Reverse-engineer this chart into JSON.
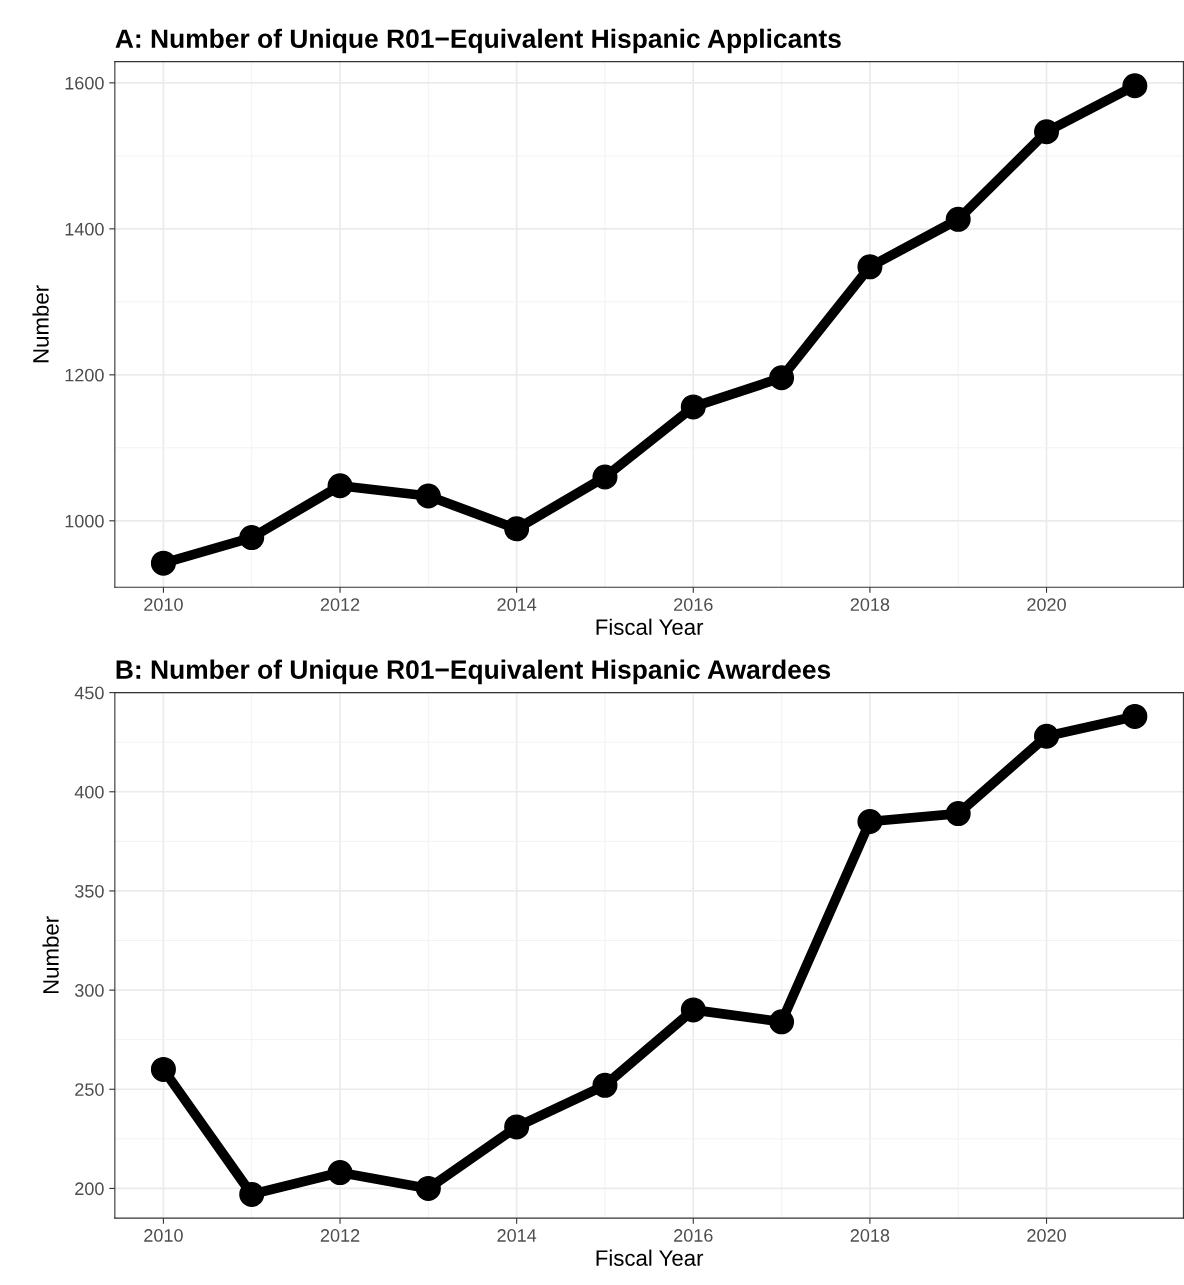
{
  "chart_data": [
    {
      "type": "line",
      "title": "A: Number of Unique R01−Equivalent Hispanic Applicants",
      "xlabel": "Fiscal Year",
      "ylabel": "Number",
      "x": [
        2010,
        2011,
        2012,
        2013,
        2014,
        2015,
        2016,
        2017,
        2018,
        2019,
        2020,
        2021
      ],
      "series": [
        {
          "color": "#000000",
          "values": [
            942,
            977,
            1048,
            1034,
            989,
            1060,
            1156,
            1196,
            1348,
            1413,
            1533,
            1596
          ]
        }
      ],
      "xlim": [
        2009.45,
        2021.55
      ],
      "xticks": [
        2010,
        2012,
        2014,
        2016,
        2018,
        2020
      ],
      "ylim": [
        909,
        1629
      ],
      "yticks": [
        1000,
        1200,
        1400,
        1600
      ],
      "grid": true,
      "marker": "circle",
      "line_style": "solid"
    },
    {
      "type": "line",
      "title": "B: Number of Unique R01−Equivalent Hispanic Awardees",
      "xlabel": "Fiscal Year",
      "ylabel": "Number",
      "x": [
        2010,
        2011,
        2012,
        2013,
        2014,
        2015,
        2016,
        2017,
        2018,
        2019,
        2020,
        2021
      ],
      "series": [
        {
          "color": "#000000",
          "values": [
            260,
            197,
            208,
            200,
            231,
            252,
            290,
            284,
            385,
            389,
            428,
            438
          ]
        }
      ],
      "xlim": [
        2009.45,
        2021.55
      ],
      "xticks": [
        2010,
        2012,
        2014,
        2016,
        2018,
        2020
      ],
      "ylim": [
        185,
        450
      ],
      "yticks": [
        200,
        250,
        300,
        350,
        400,
        450
      ],
      "grid": true,
      "marker": "circle",
      "line_style": "solid"
    }
  ]
}
